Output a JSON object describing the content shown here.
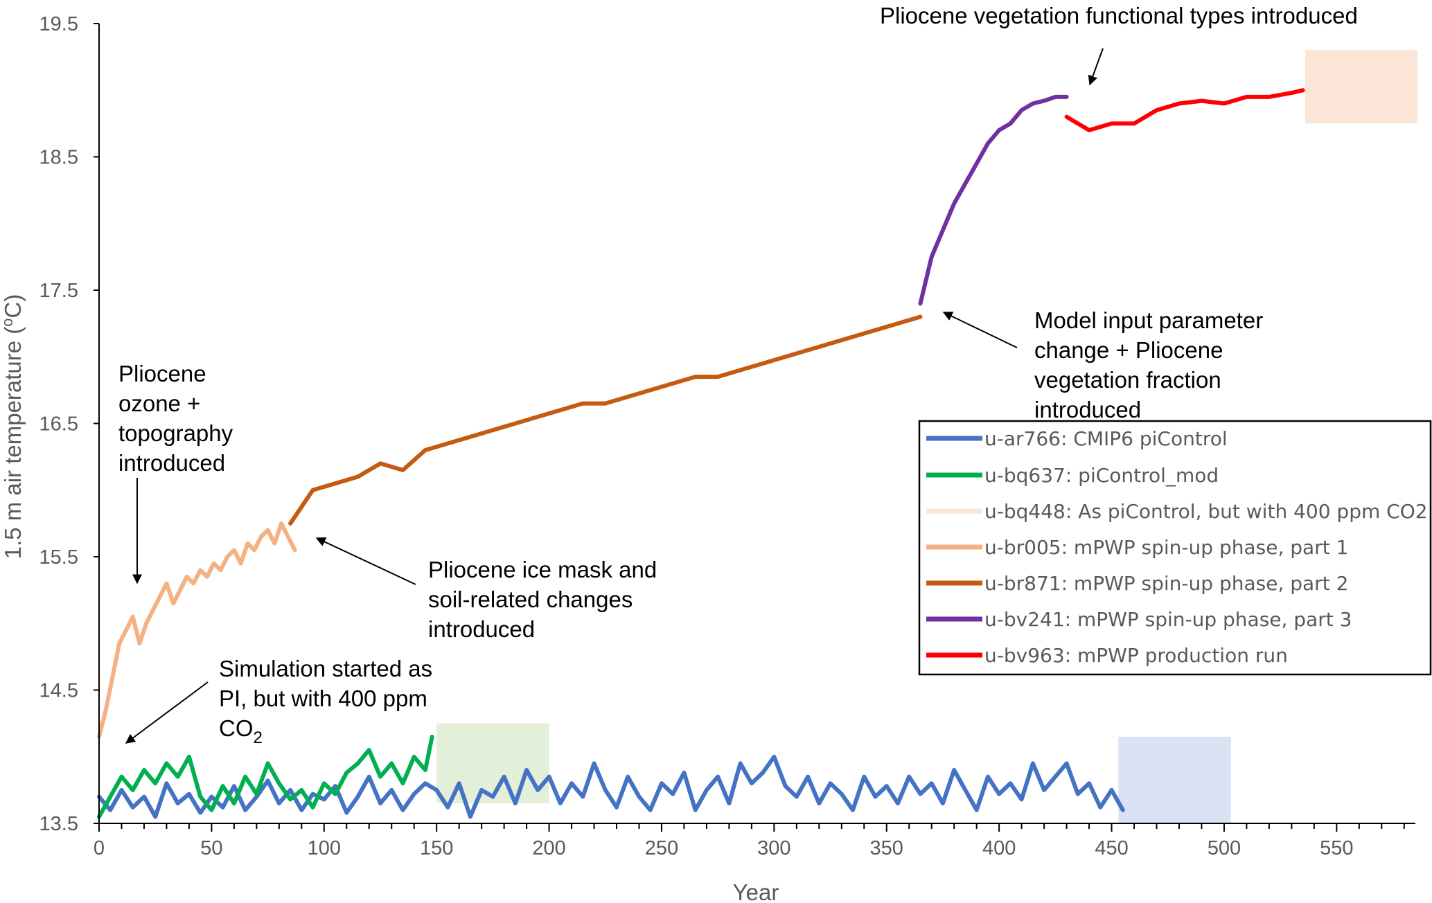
{
  "chart_data": {
    "type": "line",
    "title": "",
    "xlabel": "Year",
    "ylabel": "1.5 m air temperature (",
    "ylabel_sup": "o",
    "ylabel_end": "C)",
    "xlim": [
      0,
      585
    ],
    "ylim": [
      13.5,
      19.5
    ],
    "x_ticks": [
      0,
      50,
      100,
      150,
      200,
      250,
      300,
      350,
      400,
      450,
      500,
      550
    ],
    "x_tick_labels": [
      "0",
      "50",
      "100",
      "150",
      "200",
      "250",
      "300",
      "350",
      "400",
      "450",
      "500",
      "550"
    ],
    "y_ticks": [
      13.5,
      14.5,
      15.5,
      16.5,
      17.5,
      18.5,
      19.5
    ],
    "y_tick_labels": [
      "13.5",
      "14.5",
      "15.5",
      "16.5",
      "17.5",
      "18.5",
      "19.5"
    ],
    "x_minor_step": 10,
    "grid": false,
    "legend_position": "right",
    "series": [
      {
        "name": "u-ar766: CMIP6 piControl",
        "color": "#4472c4",
        "x": [
          0,
          5,
          10,
          15,
          20,
          25,
          30,
          35,
          40,
          45,
          50,
          55,
          60,
          65,
          70,
          75,
          80,
          85,
          90,
          95,
          100,
          105,
          110,
          115,
          120,
          125,
          130,
          135,
          140,
          145,
          150,
          155,
          160,
          165,
          170,
          175,
          180,
          185,
          190,
          195,
          200,
          205,
          210,
          215,
          220,
          225,
          230,
          235,
          240,
          245,
          250,
          255,
          260,
          265,
          270,
          275,
          280,
          285,
          290,
          295,
          300,
          305,
          310,
          315,
          320,
          325,
          330,
          335,
          340,
          345,
          350,
          355,
          360,
          365,
          370,
          375,
          380,
          385,
          390,
          395,
          400,
          405,
          410,
          415,
          420,
          425,
          430,
          435,
          440,
          445,
          450,
          455
        ],
        "y": [
          13.7,
          13.6,
          13.75,
          13.62,
          13.7,
          13.55,
          13.8,
          13.65,
          13.72,
          13.58,
          13.7,
          13.62,
          13.78,
          13.6,
          13.7,
          13.82,
          13.65,
          13.75,
          13.6,
          13.72,
          13.68,
          13.78,
          13.58,
          13.7,
          13.85,
          13.65,
          13.75,
          13.6,
          13.72,
          13.8,
          13.75,
          13.62,
          13.8,
          13.55,
          13.75,
          13.7,
          13.85,
          13.65,
          13.9,
          13.75,
          13.85,
          13.65,
          13.8,
          13.7,
          13.95,
          13.75,
          13.62,
          13.85,
          13.7,
          13.6,
          13.8,
          13.72,
          13.88,
          13.6,
          13.75,
          13.85,
          13.65,
          13.95,
          13.8,
          13.88,
          14.0,
          13.78,
          13.7,
          13.85,
          13.65,
          13.8,
          13.72,
          13.6,
          13.85,
          13.7,
          13.78,
          13.65,
          13.85,
          13.72,
          13.8,
          13.65,
          13.9,
          13.75,
          13.6,
          13.85,
          13.72,
          13.8,
          13.68,
          13.95,
          13.75,
          13.85,
          13.95,
          13.72,
          13.8,
          13.62,
          13.75,
          13.6
        ]
      },
      {
        "name": "u-bq637: piControl_mod",
        "color": "#00b050",
        "x": [
          0,
          5,
          10,
          15,
          20,
          25,
          30,
          35,
          40,
          45,
          50,
          55,
          60,
          65,
          70,
          75,
          80,
          85,
          90,
          95,
          100,
          105,
          110,
          115,
          120,
          125,
          130,
          135,
          140,
          145,
          148
        ],
        "y": [
          13.55,
          13.7,
          13.85,
          13.75,
          13.9,
          13.8,
          13.95,
          13.85,
          14.0,
          13.7,
          13.6,
          13.78,
          13.65,
          13.85,
          13.72,
          13.95,
          13.8,
          13.68,
          13.75,
          13.62,
          13.8,
          13.72,
          13.88,
          13.95,
          14.05,
          13.85,
          13.95,
          13.8,
          14.0,
          13.9,
          14.15
        ]
      },
      {
        "name": "u-bq448: As piControl, but with 400 ppm CO2",
        "color": "#fbe5d6",
        "x": [],
        "y": []
      },
      {
        "name": "u-br005: mPWP spin-up phase, part 1",
        "color": "#f4b183",
        "x": [
          0,
          3,
          6,
          9,
          12,
          15,
          18,
          21,
          24,
          27,
          30,
          33,
          36,
          39,
          42,
          45,
          48,
          51,
          54,
          57,
          60,
          63,
          66,
          69,
          72,
          75,
          78,
          81,
          84,
          87
        ],
        "y": [
          14.15,
          14.35,
          14.6,
          14.85,
          14.95,
          15.05,
          14.85,
          15.0,
          15.1,
          15.2,
          15.3,
          15.15,
          15.25,
          15.35,
          15.3,
          15.4,
          15.35,
          15.45,
          15.4,
          15.5,
          15.55,
          15.45,
          15.6,
          15.55,
          15.65,
          15.7,
          15.6,
          15.75,
          15.65,
          15.55
        ]
      },
      {
        "name": "u-br871: mPWP spin-up phase, part 2",
        "color": "#c55a11",
        "x": [
          85,
          95,
          105,
          115,
          125,
          135,
          145,
          155,
          165,
          175,
          185,
          195,
          205,
          215,
          225,
          235,
          245,
          255,
          265,
          275,
          285,
          295,
          305,
          315,
          325,
          335,
          345,
          355,
          365
        ],
        "y": [
          15.75,
          16.0,
          16.05,
          16.1,
          16.2,
          16.15,
          16.3,
          16.35,
          16.4,
          16.45,
          16.5,
          16.55,
          16.6,
          16.65,
          16.65,
          16.7,
          16.75,
          16.8,
          16.85,
          16.85,
          16.9,
          16.95,
          17.0,
          17.05,
          17.1,
          17.15,
          17.2,
          17.25,
          17.3
        ]
      },
      {
        "name": "u-bv241: mPWP spin-up phase, part 3",
        "color": "#7030a0",
        "x": [
          365,
          370,
          375,
          380,
          385,
          390,
          395,
          400,
          405,
          410,
          415,
          420,
          425,
          430
        ],
        "y": [
          17.4,
          17.75,
          17.95,
          18.15,
          18.3,
          18.45,
          18.6,
          18.7,
          18.75,
          18.85,
          18.9,
          18.92,
          18.95,
          18.95
        ]
      },
      {
        "name": "u-bv963: mPWP production run",
        "color": "#ff0000",
        "x": [
          430,
          440,
          450,
          460,
          470,
          480,
          490,
          500,
          510,
          520,
          530,
          535
        ],
        "y": [
          18.8,
          18.7,
          18.75,
          18.75,
          18.85,
          18.9,
          18.92,
          18.9,
          18.95,
          18.95,
          18.98,
          19.0
        ]
      }
    ],
    "shaded_regions": [
      {
        "x": [
          150,
          200
        ],
        "y": [
          13.65,
          14.25
        ],
        "color": "#e2f0d9"
      },
      {
        "x": [
          453,
          503
        ],
        "y": [
          13.5,
          14.15
        ],
        "color": "#dae3f3"
      },
      {
        "x": [
          536,
          586
        ],
        "y": [
          18.75,
          19.3
        ],
        "color": "#fbe5d6"
      }
    ],
    "annotations": [
      {
        "lines": [
          "Pliocene vegetation functional types introduced"
        ]
      },
      {
        "lines": [
          "Model input parameter",
          "change + Pliocene",
          "vegetation fraction",
          "introduced"
        ]
      },
      {
        "lines": [
          "Pliocene",
          "ozone +",
          "topography",
          "introduced"
        ]
      },
      {
        "lines": [
          "Pliocene ice mask and",
          "soil-related changes",
          "introduced"
        ]
      },
      {
        "lines": [
          "Simulation started as",
          "PI, but with 400 ppm",
          "CO",
          "2"
        ]
      }
    ]
  }
}
